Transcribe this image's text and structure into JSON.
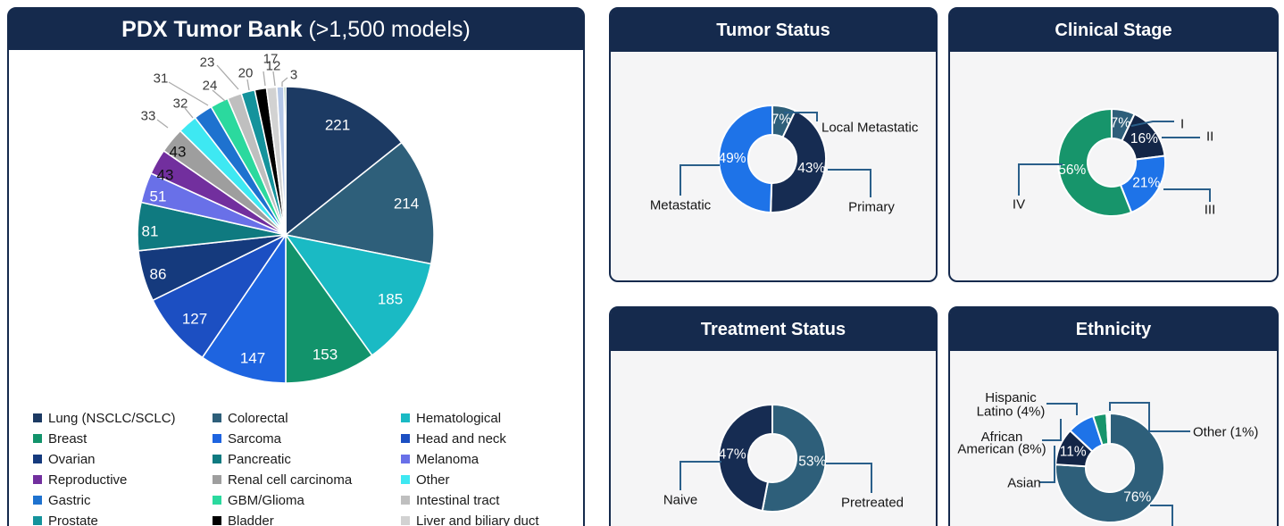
{
  "title": {
    "bold": "PDX Tumor Bank",
    "rest": "(>1,500 models)"
  },
  "panels": {
    "tumor_status": {
      "title": "Tumor Status"
    },
    "clinical_stage": {
      "title": "Clinical Stage"
    },
    "treatment_status": {
      "title": "Treatment Status"
    },
    "ethnicity": {
      "title": "Ethnicity"
    }
  },
  "theme": {
    "header_bg": "#152A4D",
    "panel_border": "#152A4D",
    "callout_line": "#2A5F8A",
    "leader_line": "#ABABAB",
    "accent_blue": "#1E73E8",
    "accent_slate": "#2E5F7A",
    "accent_green": "#17956B",
    "accent_navy": "#162C52"
  },
  "chart_data": [
    {
      "id": "tumor_bank_pie",
      "type": "pie",
      "title": "PDX Tumor Bank (>1,500 models)",
      "legend_position": "bottom",
      "slices": [
        {
          "label": "Lung (NSCLC/SCLC)",
          "value": 221,
          "color": "#1C3A63"
        },
        {
          "label": "Colorectal",
          "value": 214,
          "color": "#2E5F7A"
        },
        {
          "label": "Hematological",
          "value": 185,
          "color": "#1ABAC4"
        },
        {
          "label": "Breast",
          "value": 153,
          "color": "#12936B"
        },
        {
          "label": "Sarcoma",
          "value": 147,
          "color": "#1E64E0"
        },
        {
          "label": "Head and neck",
          "value": 127,
          "color": "#1C4FC2"
        },
        {
          "label": "Ovarian",
          "value": 86,
          "color": "#153A7D"
        },
        {
          "label": "Pancreatic",
          "value": 81,
          "color": "#0F7A80"
        },
        {
          "label": "Melanoma",
          "value": 51,
          "color": "#6970E8"
        },
        {
          "label": "Reproductive",
          "value": 43,
          "color": "#722F9E"
        },
        {
          "label": "Renal cell carcinoma",
          "value": 43,
          "color": "#9E9E9E"
        },
        {
          "label": "Other",
          "value": 33,
          "color": "#3EE8F2"
        },
        {
          "label": "Gastric",
          "value": 32,
          "color": "#1E72CF"
        },
        {
          "label": "GBM/Glioma",
          "value": 31,
          "color": "#2BD99E"
        },
        {
          "label": "Intestinal tract",
          "value": 24,
          "color": "#BFBFBF"
        },
        {
          "label": "Prostate",
          "value": 23,
          "color": "#14939C"
        },
        {
          "label": "Bladder",
          "value": 20,
          "color": "#000000"
        },
        {
          "label": "Liver and biliary duct",
          "value": 17,
          "color": "#D2D2D2"
        },
        {
          "label": "",
          "value": 12,
          "color": "#B4C7E7"
        },
        {
          "label": "",
          "value": 3,
          "color": "#156B38"
        }
      ]
    },
    {
      "id": "tumor_status",
      "type": "donut",
      "segments": [
        {
          "name": "Local Metastatic",
          "pct": 7,
          "color": "#2E5F7A",
          "show_pct": true
        },
        {
          "name": "Primary",
          "pct": 43,
          "color": "#162C52",
          "show_pct": true
        },
        {
          "name": "Metastatic",
          "pct": 49,
          "color": "#1E73E8",
          "show_pct": true
        }
      ]
    },
    {
      "id": "clinical_stage",
      "type": "donut",
      "segments": [
        {
          "name": "I",
          "pct": 7,
          "color": "#2E5F7A",
          "show_pct": true
        },
        {
          "name": "II",
          "pct": 16,
          "color": "#132647",
          "show_pct": true
        },
        {
          "name": "III",
          "pct": 21,
          "color": "#1E73E8",
          "show_pct": true
        },
        {
          "name": "IV",
          "pct": 56,
          "color": "#17956B",
          "show_pct": true
        }
      ]
    },
    {
      "id": "treatment_status",
      "type": "donut",
      "segments": [
        {
          "name": "Pretreated",
          "pct": 53,
          "color": "#2E5F7A",
          "show_pct": true
        },
        {
          "name": "Naive",
          "pct": 47,
          "color": "#162C52",
          "show_pct": true
        }
      ]
    },
    {
      "id": "ethnicity",
      "type": "donut",
      "segments": [
        {
          "name": "",
          "pct": 76,
          "color": "#2E5F7A",
          "show_pct": true
        },
        {
          "name": "Asian",
          "pct": 11,
          "color": "#132647",
          "show_pct": true
        },
        {
          "name": "African American (8%)",
          "name_lines": [
            "African",
            "American (8%)"
          ],
          "pct": 8,
          "color": "#1E73E8",
          "show_pct": false
        },
        {
          "name": "Hispanic Latino (4%)",
          "name_lines": [
            "Hispanic",
            "Latino (4%)"
          ],
          "pct": 4,
          "color": "#17956B",
          "show_pct": false
        },
        {
          "name": "Other (1%)",
          "pct": 1,
          "color": "#FFFFFF",
          "show_pct": false
        }
      ]
    }
  ]
}
